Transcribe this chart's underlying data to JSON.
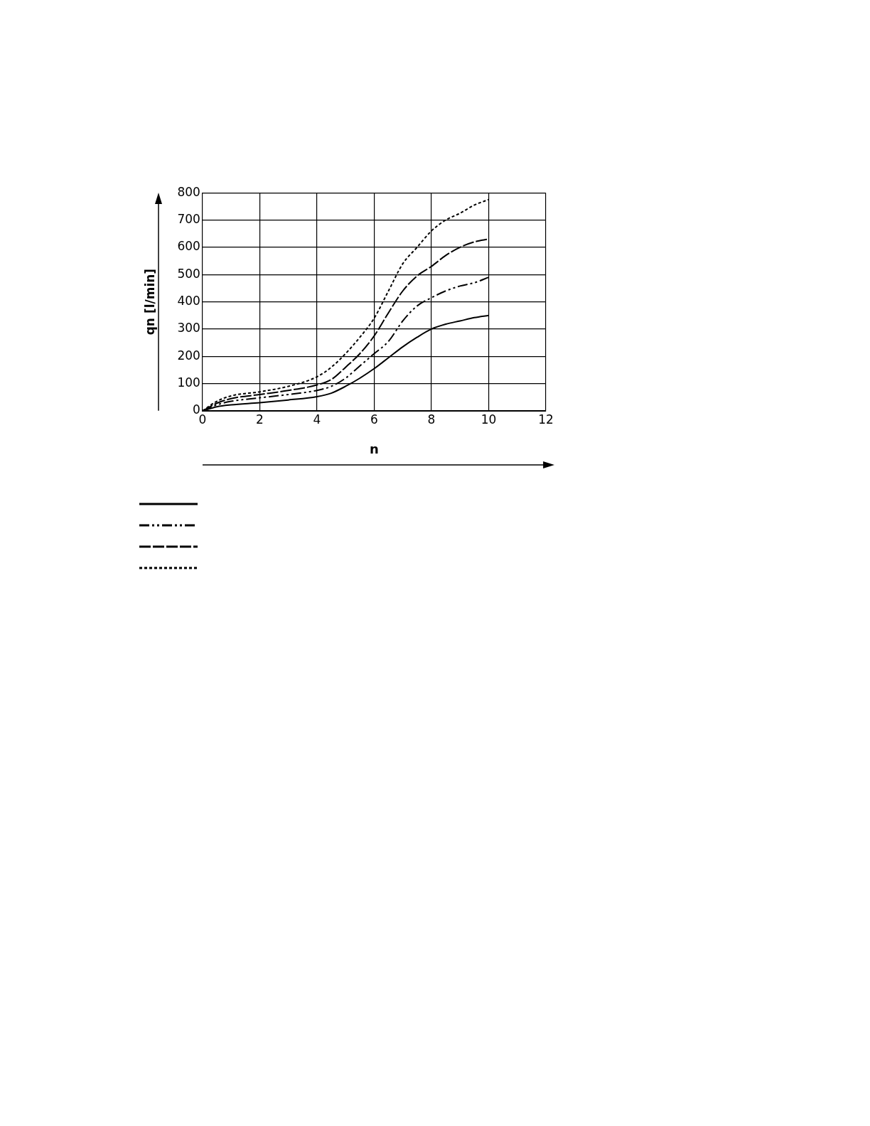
{
  "chart_data": {
    "type": "line",
    "xlabel": "n",
    "ylabel": "qn [l/min]",
    "x": [
      0,
      0.5,
      1,
      2,
      3,
      4,
      4.5,
      5,
      5.5,
      6,
      6.5,
      7,
      7.5,
      8,
      8.5,
      9,
      9.5,
      10
    ],
    "series": [
      {
        "color": "#000000",
        "line_style": "solid",
        "values": [
          0,
          15,
          22,
          30,
          40,
          52,
          65,
          90,
          120,
          155,
          195,
          235,
          270,
          300,
          318,
          330,
          342,
          350
        ]
      },
      {
        "color": "#000000",
        "line_style": "dashdot",
        "values": [
          0,
          22,
          35,
          48,
          60,
          75,
          90,
          120,
          165,
          210,
          255,
          330,
          385,
          415,
          440,
          458,
          470,
          490
        ]
      },
      {
        "color": "#000000",
        "line_style": "dashed",
        "values": [
          0,
          28,
          45,
          60,
          75,
          95,
          115,
          160,
          210,
          275,
          360,
          440,
          495,
          530,
          570,
          600,
          620,
          630
        ]
      },
      {
        "color": "#000000",
        "line_style": "dotted",
        "values": [
          0,
          35,
          55,
          70,
          90,
          125,
          160,
          210,
          270,
          340,
          440,
          540,
          600,
          660,
          700,
          725,
          755,
          775
        ]
      }
    ],
    "xlim": [
      0,
      12
    ],
    "xticks": [
      0,
      2,
      4,
      6,
      8,
      10,
      12
    ],
    "ylim": [
      0,
      800
    ],
    "yticks": [
      0,
      100,
      200,
      300,
      400,
      500,
      600,
      700,
      800
    ],
    "grid": true,
    "marker": "none"
  }
}
